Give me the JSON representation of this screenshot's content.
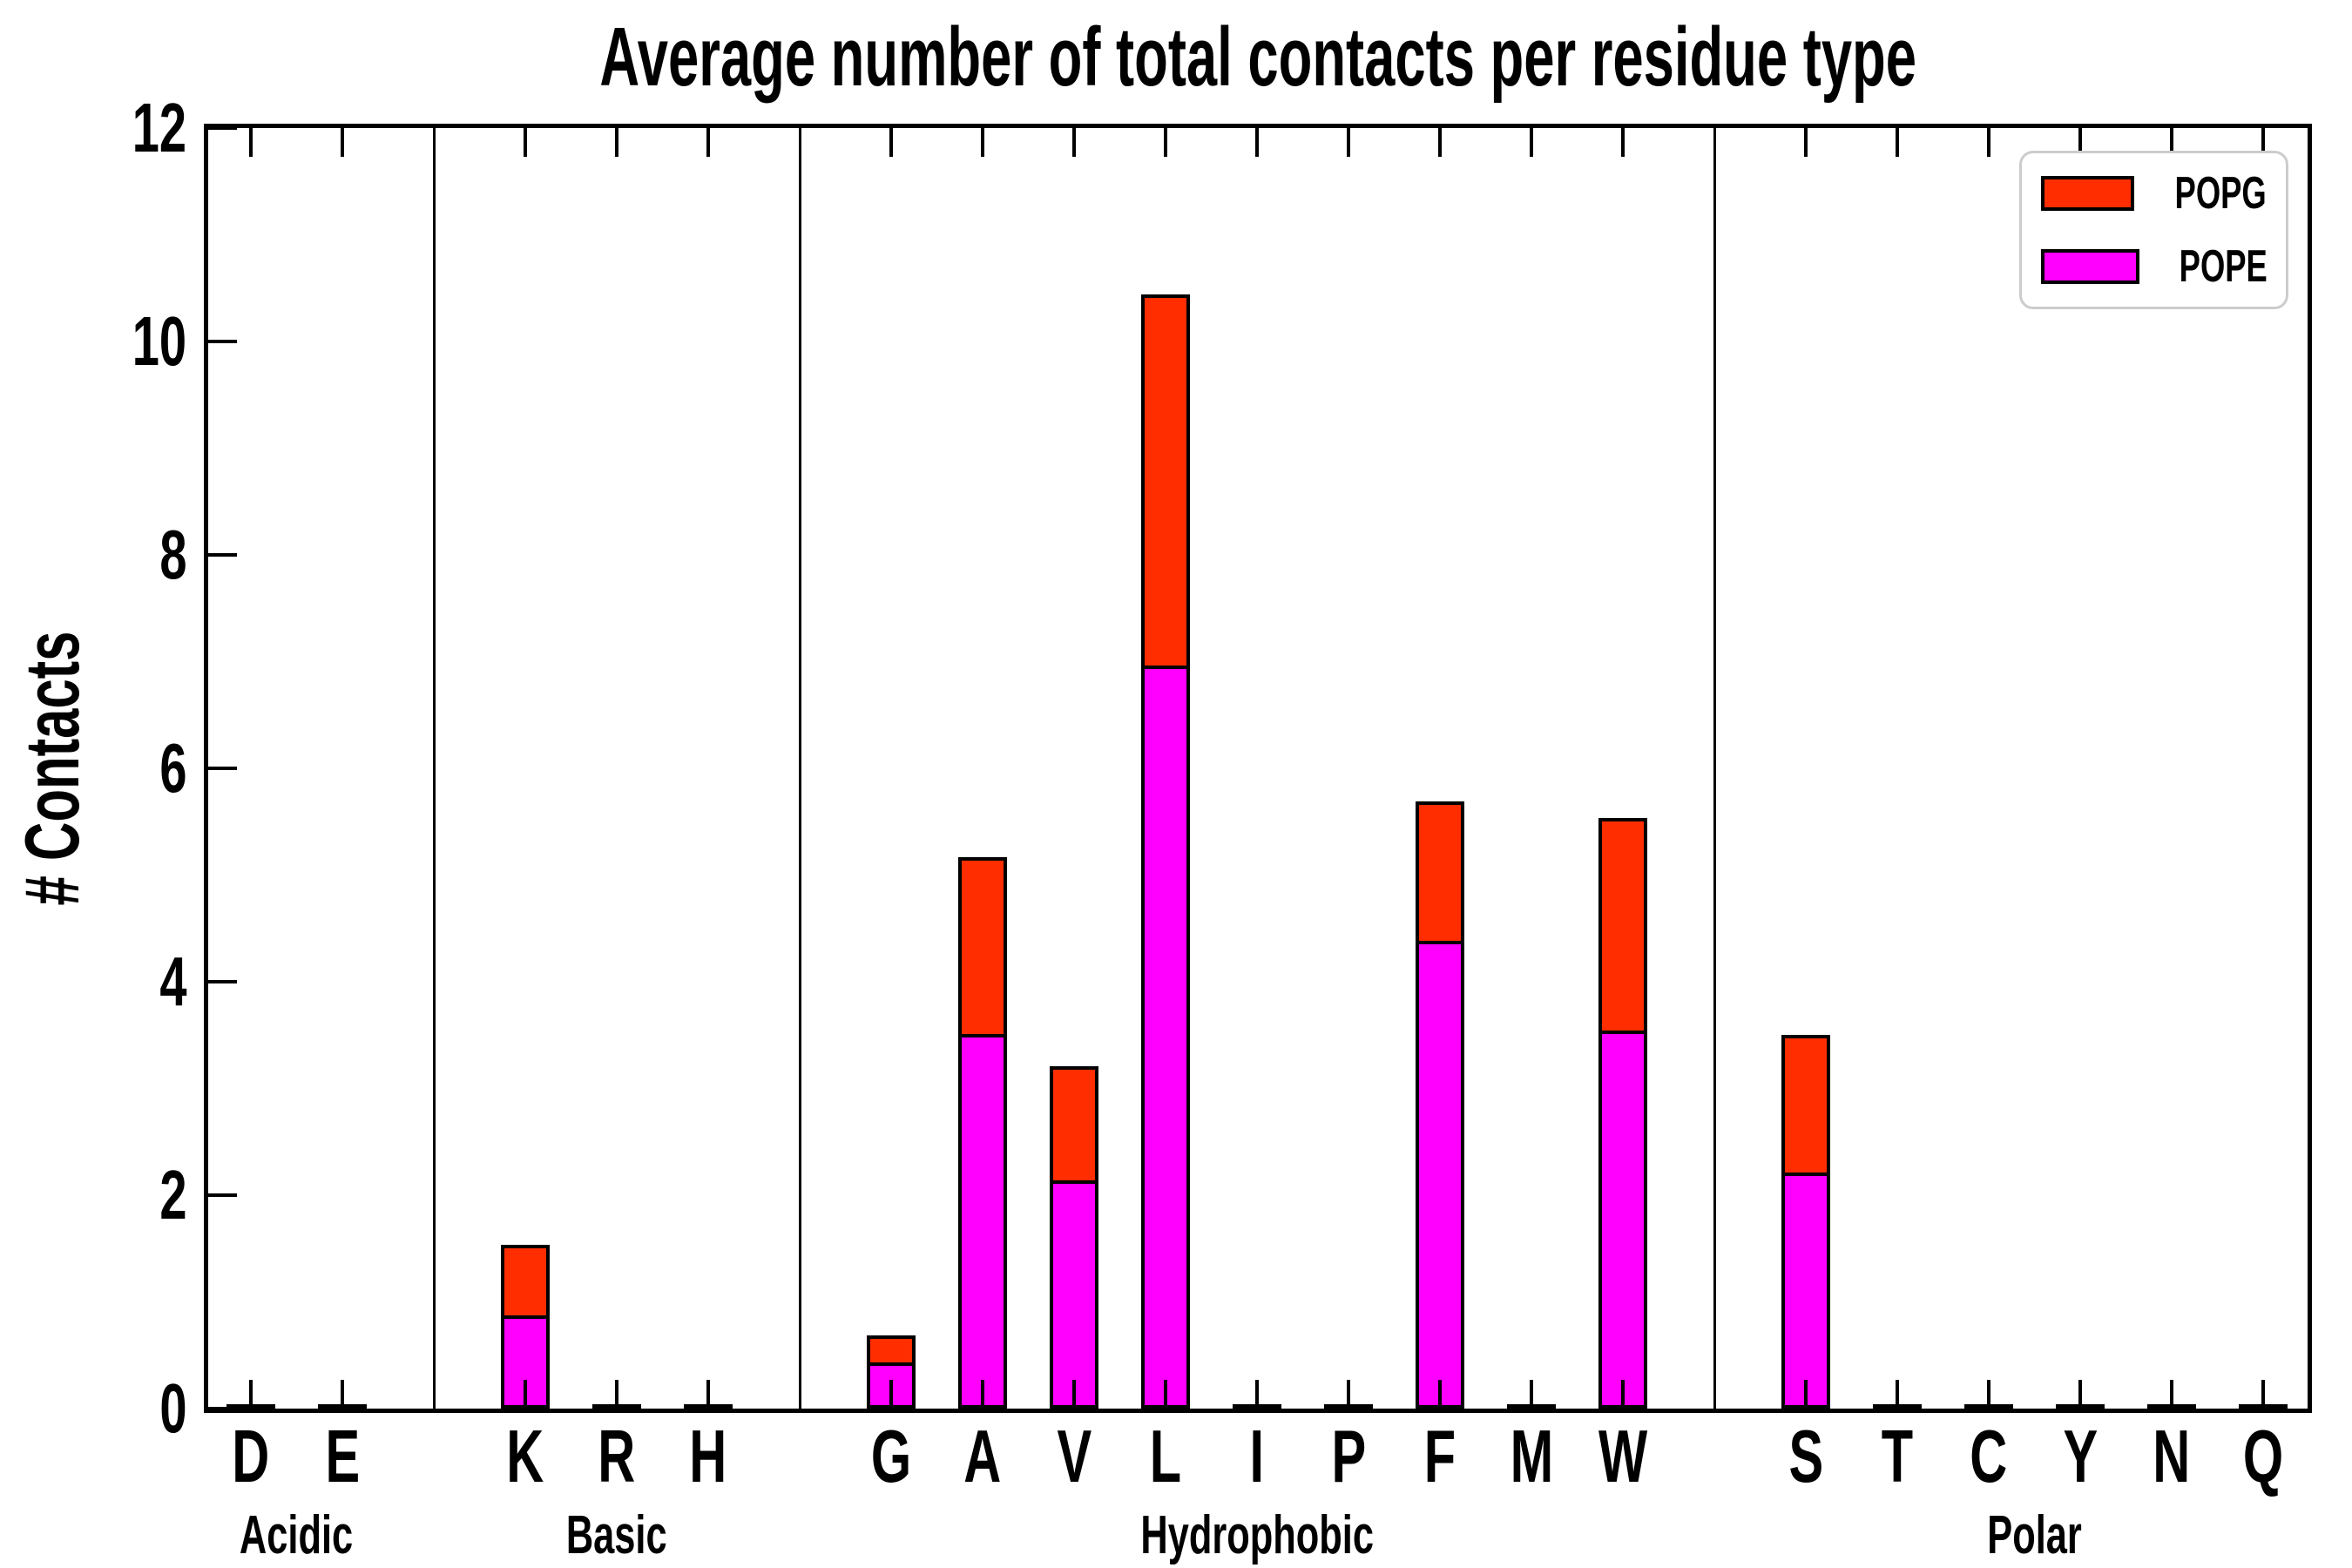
{
  "figure": {
    "title": "Average number of total contacts per residue type",
    "ylabel": "# Contacts"
  },
  "chart_data": {
    "type": "bar",
    "stacked": true,
    "title": "Average number of total contacts per residue type",
    "xlabel": "",
    "ylabel": "# Contacts",
    "ylim": [
      0,
      12
    ],
    "yticks": [
      0,
      2,
      4,
      6,
      8,
      10,
      12
    ],
    "grid": false,
    "background": "#FFFFFF",
    "bar_edge_color": "#000000",
    "groups": [
      {
        "label": "Acidic",
        "residues": [
          "D",
          "E"
        ]
      },
      {
        "label": "Basic",
        "residues": [
          "K",
          "R",
          "H"
        ]
      },
      {
        "label": "Hydrophobic",
        "residues": [
          "G",
          "A",
          "V",
          "L",
          "I",
          "P",
          "F",
          "M",
          "W"
        ]
      },
      {
        "label": "Polar",
        "residues": [
          "S",
          "T",
          "C",
          "Y",
          "N",
          "Q"
        ]
      }
    ],
    "categories": [
      "D",
      "E",
      "K",
      "R",
      "H",
      "G",
      "A",
      "V",
      "L",
      "I",
      "P",
      "F",
      "M",
      "W",
      "S",
      "T",
      "C",
      "Y",
      "N",
      "Q"
    ],
    "series": [
      {
        "name": "POPE",
        "color": "#FF00FF",
        "values": [
          0,
          0,
          0.87,
          0,
          0,
          0.43,
          3.51,
          2.14,
          6.96,
          0,
          0,
          4.38,
          0,
          3.54,
          2.21,
          0,
          0,
          0,
          0,
          0
        ]
      },
      {
        "name": "POPG",
        "color": "#FF2D00",
        "values": [
          0,
          0,
          0.66,
          0,
          0,
          0.25,
          1.66,
          1.07,
          3.48,
          0,
          0,
          1.31,
          0,
          1.99,
          1.29,
          0,
          0,
          0,
          0,
          0
        ]
      }
    ],
    "totals": [
      0,
      0,
      1.53,
      0,
      0,
      0.68,
      5.17,
      3.21,
      10.44,
      0,
      0,
      5.69,
      0,
      5.53,
      3.5,
      0,
      0,
      0,
      0,
      0
    ],
    "legend": {
      "position": "top-right",
      "entries": [
        {
          "label": "POPG",
          "color": "#FF2D00"
        },
        {
          "label": "POPE",
          "color": "#FF00FF"
        }
      ]
    }
  }
}
